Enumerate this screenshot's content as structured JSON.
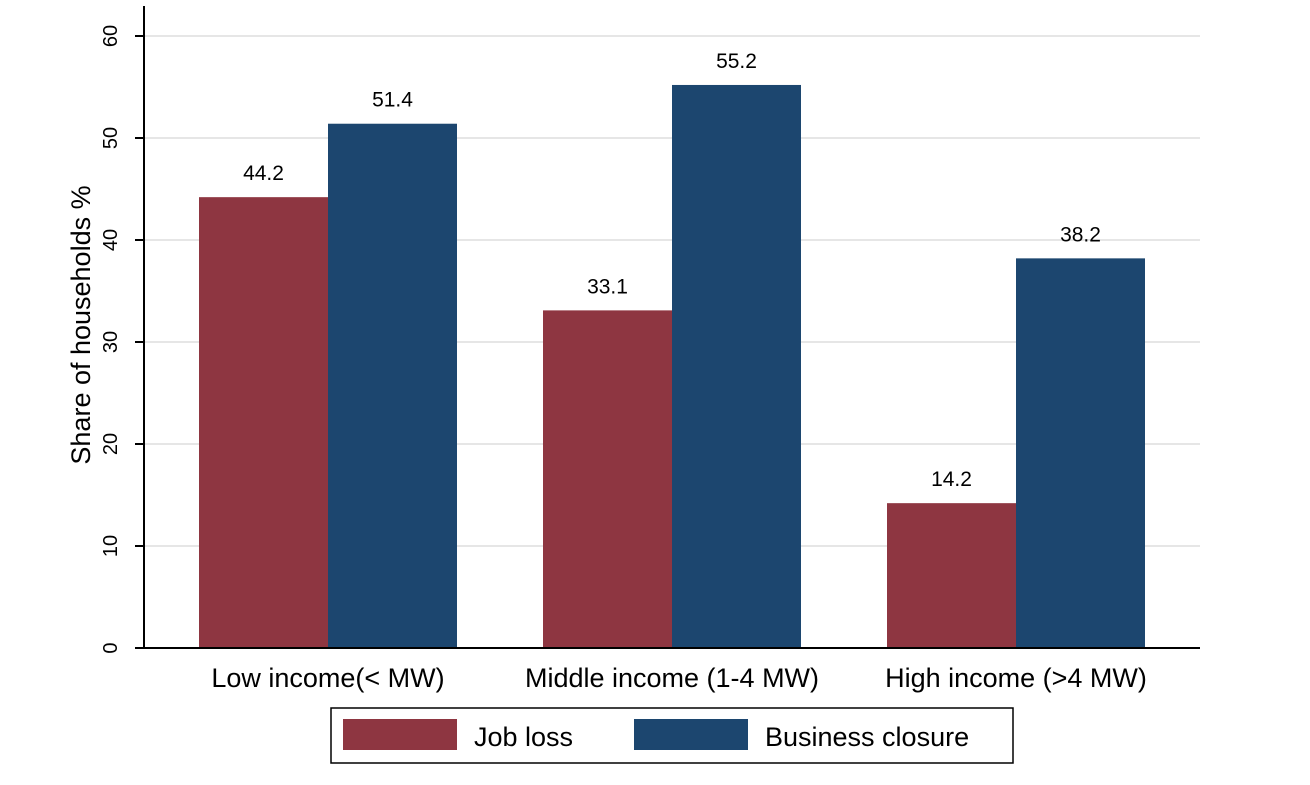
{
  "chart_data": {
    "type": "bar",
    "title": "",
    "xlabel": "",
    "ylabel": "Share of households %",
    "ylim": [
      0,
      60
    ],
    "yticks": [
      0,
      10,
      20,
      30,
      40,
      50,
      60
    ],
    "grid": true,
    "categories": [
      "Low income(< MW)",
      "Middle income (1-4 MW)",
      "High income (>4 MW)"
    ],
    "series": [
      {
        "name": "Job loss",
        "color": "#8e3641",
        "values": [
          44.2,
          33.1,
          14.2
        ]
      },
      {
        "name": "Business closure",
        "color": "#1c466f",
        "values": [
          51.4,
          55.2,
          38.2
        ]
      }
    ],
    "data_labels": true,
    "legend_position": "bottom"
  }
}
